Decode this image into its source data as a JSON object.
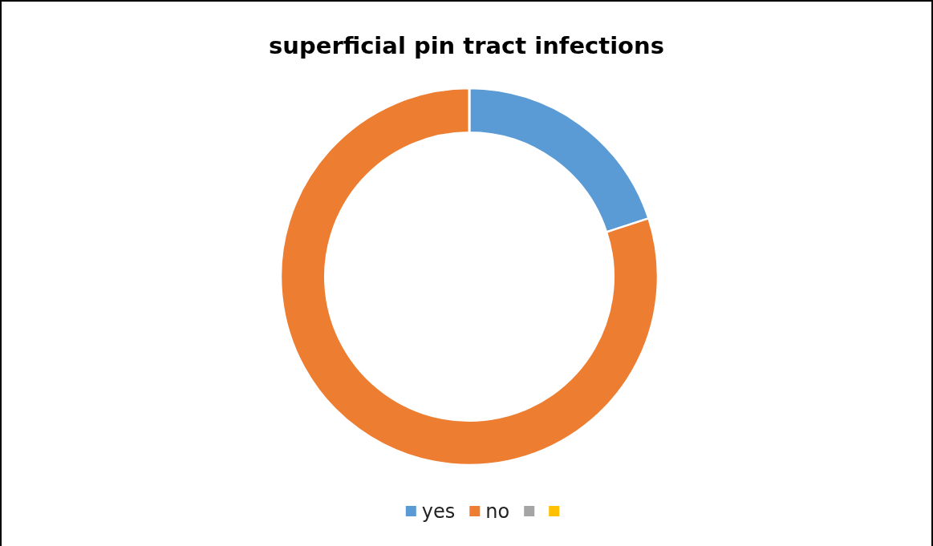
{
  "chart_data": {
    "type": "donut",
    "title": "superficial pin tract infections",
    "categories": [
      "yes",
      "no",
      null,
      null
    ],
    "values": [
      20,
      80,
      0,
      0
    ],
    "colors": [
      "#5b9bd5",
      "#ed7d31",
      "#a5a5a5",
      "#ffc000"
    ],
    "legend": "bottom"
  }
}
